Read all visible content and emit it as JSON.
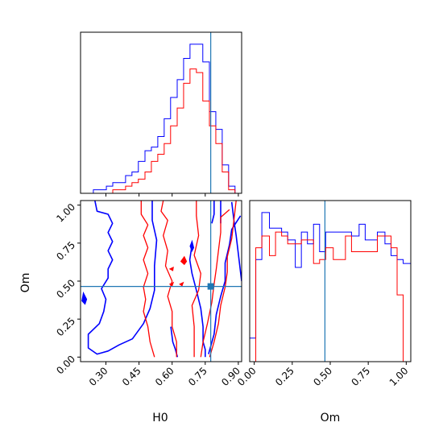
{
  "chart_data": {
    "type": "corner",
    "colors": {
      "series_a": "#0000ff",
      "series_b": "#ff0000",
      "truth": "#1f77b4",
      "frame": "#000000"
    },
    "truth": {
      "H0": 0.775,
      "Om": 0.465
    },
    "labels": {
      "H0": "H0",
      "Om": "Om"
    },
    "ranges": {
      "H0": [
        0.185,
        0.915
      ],
      "Om": [
        -0.03,
        1.03
      ]
    },
    "ticks": {
      "H0": [
        "0.30",
        "0.45",
        "0.60",
        "0.75",
        "0.90"
      ],
      "Om": [
        "0.00",
        "0.25",
        "0.50",
        "0.75",
        "1.00"
      ]
    },
    "hist_H0": {
      "bin_edges": [
        0.185,
        0.214,
        0.243,
        0.272,
        0.302,
        0.331,
        0.36,
        0.389,
        0.418,
        0.447,
        0.477,
        0.506,
        0.535,
        0.564,
        0.593,
        0.623,
        0.652,
        0.681,
        0.71,
        0.739,
        0.769,
        0.798,
        0.827,
        0.856,
        0.885,
        0.915
      ],
      "blue": [
        0,
        0,
        1,
        1,
        2,
        3,
        3,
        5,
        6,
        9,
        12,
        13,
        16,
        21,
        27,
        32,
        38,
        42,
        42,
        37,
        23,
        18,
        8,
        2,
        0
      ],
      "red": [
        0,
        0,
        0,
        0,
        0,
        1,
        1,
        2,
        3,
        4,
        6,
        9,
        11,
        14,
        19,
        24,
        31,
        35,
        34,
        26,
        19,
        14,
        6,
        1,
        0
      ]
    },
    "hist_Om": {
      "bin_edges": [
        -0.03,
        0.01,
        0.05,
        0.1,
        0.14,
        0.18,
        0.22,
        0.27,
        0.31,
        0.35,
        0.39,
        0.43,
        0.47,
        0.52,
        0.56,
        0.6,
        0.64,
        0.69,
        0.73,
        0.77,
        0.81,
        0.86,
        0.9,
        0.94,
        0.98,
        1.03
      ],
      "blue": [
        6,
        26,
        38,
        34,
        34,
        33,
        31,
        24,
        33,
        30,
        35,
        28,
        33,
        33,
        33,
        33,
        32,
        35,
        31,
        31,
        33,
        30,
        27,
        26,
        25
      ],
      "red": [
        0,
        29,
        32,
        27,
        33,
        32,
        30,
        30,
        31,
        31,
        25,
        26,
        29,
        26,
        26,
        32,
        28,
        28,
        28,
        28,
        32,
        32,
        29,
        17,
        0
      ]
    },
    "contours": {
      "blue": [
        [
          [
            0.25,
            1.03
          ],
          [
            0.26,
            0.96
          ],
          [
            0.31,
            0.94
          ],
          [
            0.33,
            0.88
          ],
          [
            0.31,
            0.82
          ],
          [
            0.33,
            0.76
          ],
          [
            0.31,
            0.7
          ],
          [
            0.33,
            0.64
          ],
          [
            0.31,
            0.58
          ],
          [
            0.31,
            0.52
          ],
          [
            0.28,
            0.45
          ],
          [
            0.3,
            0.38
          ],
          [
            0.29,
            0.3
          ],
          [
            0.27,
            0.22
          ],
          [
            0.22,
            0.15
          ],
          [
            0.22,
            0.06
          ],
          [
            0.26,
            0.02
          ],
          [
            0.31,
            0.04
          ],
          [
            0.36,
            0.08
          ],
          [
            0.42,
            0.12
          ],
          [
            0.47,
            0.22
          ],
          [
            0.5,
            0.32
          ],
          [
            0.52,
            0.44
          ],
          [
            0.52,
            0.6
          ],
          [
            0.53,
            0.77
          ],
          [
            0.51,
            0.9
          ],
          [
            0.51,
            1.03
          ]
        ],
        [
          [
            0.594,
            0.2
          ],
          [
            0.603,
            0.1
          ],
          [
            0.615,
            0.05
          ],
          [
            0.624,
            0.0
          ]
        ],
        [
          [
            0.69,
            0.74
          ],
          [
            0.68,
            0.64
          ],
          [
            0.69,
            0.55
          ],
          [
            0.71,
            0.44
          ],
          [
            0.73,
            0.32
          ],
          [
            0.74,
            0.2
          ],
          [
            0.74,
            0.1
          ],
          [
            0.75,
            0.05
          ],
          [
            0.75,
            0.0
          ]
        ],
        [
          [
            0.765,
            0.02
          ],
          [
            0.79,
            0.15
          ],
          [
            0.8,
            0.28
          ],
          [
            0.82,
            0.4
          ],
          [
            0.84,
            0.5
          ],
          [
            0.84,
            0.62
          ],
          [
            0.86,
            0.74
          ],
          [
            0.87,
            0.84
          ],
          [
            0.91,
            0.93
          ]
        ],
        [
          [
            0.87,
            1.02
          ],
          [
            0.88,
            0.9
          ],
          [
            0.89,
            0.8
          ],
          [
            0.9,
            0.68
          ],
          [
            0.91,
            0.56
          ],
          [
            0.915,
            0.5
          ]
        ],
        [
          [
            0.79,
            1.03
          ],
          [
            0.79,
            0.94
          ],
          [
            0.78,
            0.88
          ]
        ],
        [
          [
            0.82,
            1.03
          ],
          [
            0.82,
            0.95
          ],
          [
            0.82,
            0.88
          ]
        ]
      ],
      "blue_islands": [
        [
          [
            0.198,
            0.42
          ],
          [
            0.212,
            0.38
          ],
          [
            0.205,
            0.35
          ],
          [
            0.192,
            0.37
          ],
          [
            0.198,
            0.42
          ]
        ],
        [
          [
            0.682,
            0.73
          ],
          [
            0.69,
            0.76
          ],
          [
            0.697,
            0.72
          ],
          [
            0.69,
            0.7
          ],
          [
            0.682,
            0.73
          ]
        ]
      ],
      "red": [
        [
          [
            0.46,
            1.03
          ],
          [
            0.46,
            0.94
          ],
          [
            0.49,
            0.87
          ],
          [
            0.47,
            0.8
          ],
          [
            0.49,
            0.72
          ],
          [
            0.47,
            0.64
          ],
          [
            0.49,
            0.55
          ],
          [
            0.47,
            0.46
          ],
          [
            0.48,
            0.38
          ],
          [
            0.47,
            0.3
          ],
          [
            0.49,
            0.2
          ],
          [
            0.5,
            0.1
          ],
          [
            0.52,
            0.0
          ]
        ],
        [
          [
            0.56,
            1.03
          ],
          [
            0.55,
            0.96
          ],
          [
            0.58,
            0.9
          ],
          [
            0.56,
            0.8
          ],
          [
            0.58,
            0.7
          ],
          [
            0.57,
            0.6
          ],
          [
            0.6,
            0.5
          ],
          [
            0.58,
            0.4
          ],
          [
            0.6,
            0.3
          ],
          [
            0.6,
            0.2
          ],
          [
            0.62,
            0.1
          ],
          [
            0.62,
            0.0
          ]
        ],
        [
          [
            0.71,
            1.03
          ],
          [
            0.71,
            0.93
          ],
          [
            0.72,
            0.8
          ],
          [
            0.7,
            0.67
          ],
          [
            0.73,
            0.55
          ],
          [
            0.72,
            0.44
          ],
          [
            0.69,
            0.34
          ],
          [
            0.7,
            0.2
          ],
          [
            0.7,
            0.08
          ],
          [
            0.7,
            0.0
          ]
        ],
        [
          [
            0.73,
            0.0
          ],
          [
            0.74,
            0.1
          ],
          [
            0.76,
            0.22
          ],
          [
            0.78,
            0.36
          ],
          [
            0.79,
            0.48
          ],
          [
            0.8,
            0.58
          ],
          [
            0.81,
            0.7
          ],
          [
            0.82,
            0.82
          ],
          [
            0.82,
            0.92
          ],
          [
            0.86,
            0.97
          ]
        ],
        [
          [
            0.77,
            0.0
          ],
          [
            0.79,
            0.1
          ],
          [
            0.81,
            0.22
          ],
          [
            0.82,
            0.34
          ],
          [
            0.84,
            0.46
          ],
          [
            0.85,
            0.56
          ],
          [
            0.85,
            0.66
          ],
          [
            0.87,
            0.78
          ],
          [
            0.88,
            0.9
          ],
          [
            0.89,
            1.03
          ]
        ]
      ],
      "red_islands": [
        [
          [
            0.59,
            0.58
          ],
          [
            0.605,
            0.59
          ],
          [
            0.603,
            0.57
          ],
          [
            0.59,
            0.58
          ]
        ],
        [
          [
            0.64,
            0.63
          ],
          [
            0.655,
            0.66
          ],
          [
            0.665,
            0.63
          ],
          [
            0.655,
            0.61
          ],
          [
            0.64,
            0.63
          ]
        ],
        [
          [
            0.59,
            0.48
          ],
          [
            0.605,
            0.49
          ],
          [
            0.6,
            0.47
          ],
          [
            0.59,
            0.48
          ]
        ],
        [
          [
            0.635,
            0.48
          ],
          [
            0.65,
            0.49
          ],
          [
            0.645,
            0.47
          ],
          [
            0.635,
            0.48
          ]
        ]
      ]
    }
  }
}
